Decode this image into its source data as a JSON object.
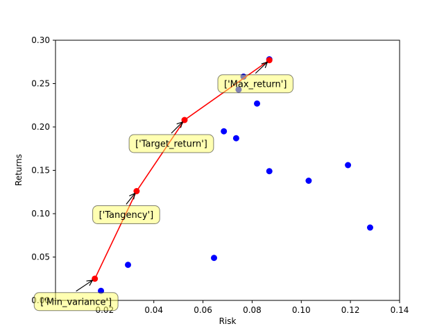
{
  "chart_data": {
    "type": "scatter",
    "xlabel": "Risk",
    "ylabel": "Returns",
    "xlim": [
      0.0,
      0.14
    ],
    "ylim": [
      0.0,
      0.3
    ],
    "xticks": [
      0.02,
      0.04,
      0.06,
      0.08,
      0.1,
      0.12,
      0.14
    ],
    "xtick_labels": [
      "0.02",
      "0.04",
      "0.06",
      "0.08",
      "0.10",
      "0.12",
      "0.14"
    ],
    "yticks": [
      0.0,
      0.05,
      0.1,
      0.15,
      0.2,
      0.25,
      0.3
    ],
    "ytick_labels": [
      "0.00",
      "0.05",
      "0.10",
      "0.15",
      "0.20",
      "0.25",
      "0.30"
    ],
    "grid": false,
    "series": [
      {
        "role": "assets",
        "color": "#0000ff",
        "points": [
          [
            0.0185,
            0.011
          ],
          [
            0.0295,
            0.041
          ],
          [
            0.0645,
            0.049
          ],
          [
            0.0685,
            0.195
          ],
          [
            0.0735,
            0.187
          ],
          [
            0.0745,
            0.243
          ],
          [
            0.0765,
            0.258
          ],
          [
            0.082,
            0.227
          ],
          [
            0.087,
            0.149
          ],
          [
            0.103,
            0.138
          ],
          [
            0.119,
            0.156
          ],
          [
            0.128,
            0.084
          ],
          [
            0.087,
            0.278
          ]
        ]
      },
      {
        "role": "efficient-frontier",
        "color": "#ff0000",
        "points": [
          [
            0.016,
            0.025
          ],
          [
            0.033,
            0.126
          ],
          [
            0.0525,
            0.208
          ],
          [
            0.087,
            0.277
          ]
        ]
      }
    ],
    "annotations": [
      {
        "text": "['Min_variance']",
        "x": 0.016,
        "y": 0.025
      },
      {
        "text": "['Tangency']",
        "x": 0.033,
        "y": 0.126
      },
      {
        "text": "['Target_return']",
        "x": 0.0525,
        "y": 0.208
      },
      {
        "text": "['Max_return']",
        "x": 0.087,
        "y": 0.277
      }
    ],
    "annotation_box_color": "#ffff66"
  }
}
